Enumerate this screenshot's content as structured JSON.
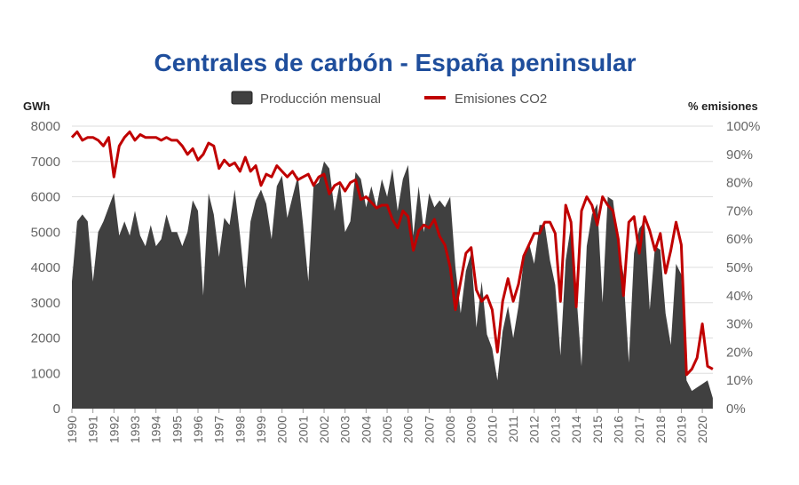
{
  "chart_data": {
    "type": "area+line",
    "title": "Centrales de carbón - España peninsular",
    "legend": [
      "Producción mensual",
      "Emisiones CO2"
    ],
    "legend_placement": "top",
    "ylabel_left": "GWh",
    "ylabel_right": "% emisiones",
    "ylim_left": [
      0,
      8000
    ],
    "ylim_right": [
      0,
      100
    ],
    "yticks_left": [
      "0",
      "1000",
      "2000",
      "3000",
      "4000",
      "5000",
      "6000",
      "7000",
      "8000"
    ],
    "yticks_right": [
      "0%",
      "10%",
      "20%",
      "30%",
      "40%",
      "50%",
      "60%",
      "70%",
      "80%",
      "90%",
      "100%"
    ],
    "xticks": [
      "1990",
      "1991",
      "1992",
      "1993",
      "1994",
      "1995",
      "1996",
      "1997",
      "1998",
      "1999",
      "2000",
      "2001",
      "2002",
      "2003",
      "2004",
      "2005",
      "2006",
      "2007",
      "2008",
      "2009",
      "2010",
      "2011",
      "2012",
      "2013",
      "2014",
      "2015",
      "2016",
      "2017",
      "2018",
      "2019",
      "2020"
    ],
    "grid": true,
    "colors": {
      "title": "#1f4e9c",
      "area": "#404040",
      "line": "#c00000",
      "grid": "#dddddd"
    },
    "x": [
      "1990-01",
      "1990-04",
      "1990-07",
      "1990-10",
      "1991-01",
      "1991-04",
      "1991-07",
      "1991-10",
      "1992-01",
      "1992-04",
      "1992-07",
      "1992-10",
      "1993-01",
      "1993-04",
      "1993-07",
      "1993-10",
      "1994-01",
      "1994-04",
      "1994-07",
      "1994-10",
      "1995-01",
      "1995-04",
      "1995-07",
      "1995-10",
      "1996-01",
      "1996-04",
      "1996-07",
      "1996-10",
      "1997-01",
      "1997-04",
      "1997-07",
      "1997-10",
      "1998-01",
      "1998-04",
      "1998-07",
      "1998-10",
      "1999-01",
      "1999-04",
      "1999-07",
      "1999-10",
      "2000-01",
      "2000-04",
      "2000-07",
      "2000-10",
      "2001-01",
      "2001-04",
      "2001-07",
      "2001-10",
      "2002-01",
      "2002-04",
      "2002-07",
      "2002-10",
      "2003-01",
      "2003-04",
      "2003-07",
      "2003-10",
      "2004-01",
      "2004-04",
      "2004-07",
      "2004-10",
      "2005-01",
      "2005-04",
      "2005-07",
      "2005-10",
      "2006-01",
      "2006-04",
      "2006-07",
      "2006-10",
      "2007-01",
      "2007-04",
      "2007-07",
      "2007-10",
      "2008-01",
      "2008-04",
      "2008-07",
      "2008-10",
      "2009-01",
      "2009-04",
      "2009-07",
      "2009-10",
      "2010-01",
      "2010-04",
      "2010-07",
      "2010-10",
      "2011-01",
      "2011-04",
      "2011-07",
      "2011-10",
      "2012-01",
      "2012-04",
      "2012-07",
      "2012-10",
      "2013-01",
      "2013-04",
      "2013-07",
      "2013-10",
      "2014-01",
      "2014-04",
      "2014-07",
      "2014-10",
      "2015-01",
      "2015-04",
      "2015-07",
      "2015-10",
      "2016-01",
      "2016-04",
      "2016-07",
      "2016-10",
      "2017-01",
      "2017-04",
      "2017-07",
      "2017-10",
      "2018-01",
      "2018-04",
      "2018-07",
      "2018-10",
      "2019-01",
      "2019-04",
      "2019-07",
      "2019-10",
      "2020-01",
      "2020-04",
      "2020-07"
    ],
    "series": [
      {
        "name": "Producción mensual",
        "type": "area",
        "axis": "left",
        "values": [
          3600,
          5300,
          5500,
          5300,
          3600,
          5000,
          5300,
          5700,
          6100,
          4900,
          5300,
          4900,
          5600,
          4900,
          4600,
          5200,
          4600,
          4800,
          5500,
          5000,
          5000,
          4600,
          5000,
          5900,
          5600,
          3200,
          6100,
          5500,
          4300,
          5400,
          5200,
          6200,
          4900,
          3400,
          5300,
          5900,
          6200,
          5800,
          4800,
          6300,
          6600,
          5400,
          6000,
          6600,
          5200,
          3600,
          6300,
          6400,
          7000,
          6800,
          5600,
          6400,
          5000,
          5300,
          6700,
          6500,
          5700,
          6300,
          5700,
          6500,
          6000,
          6800,
          5600,
          6500,
          6900,
          4900,
          6300,
          5000,
          6100,
          5700,
          5900,
          5700,
          6000,
          4000,
          2700,
          3900,
          4400,
          2300,
          3600,
          2100,
          1700,
          800,
          2200,
          2900,
          2000,
          2900,
          4200,
          4700,
          4100,
          5200,
          5200,
          4200,
          3500,
          1500,
          4200,
          5200,
          3300,
          1200,
          4600,
          5500,
          5800,
          3000,
          6000,
          5900,
          4700,
          3800,
          1300,
          4400,
          5100,
          5300,
          2800,
          4600,
          4500,
          2700,
          1800,
          4100,
          3800,
          800,
          500,
          600,
          700,
          800,
          300
        ]
      },
      {
        "name": "Emisiones CO2",
        "type": "line",
        "axis": "right",
        "values": [
          96,
          98,
          95,
          96,
          96,
          95,
          93,
          96,
          82,
          93,
          96,
          98,
          95,
          97,
          96,
          96,
          96,
          95,
          96,
          95,
          95,
          93,
          90,
          92,
          88,
          90,
          94,
          93,
          85,
          88,
          86,
          87,
          84,
          89,
          84,
          86,
          79,
          83,
          82,
          86,
          84,
          82,
          84,
          81,
          82,
          83,
          79,
          82,
          83,
          76,
          79,
          80,
          77,
          80,
          81,
          74,
          75,
          73,
          71,
          72,
          72,
          67,
          64,
          70,
          68,
          56,
          63,
          65,
          64,
          67,
          61,
          58,
          50,
          35,
          45,
          55,
          57,
          42,
          38,
          40,
          35,
          20,
          38,
          46,
          38,
          44,
          54,
          58,
          62,
          62,
          66,
          66,
          62,
          38,
          72,
          66,
          36,
          70,
          75,
          72,
          65,
          75,
          72,
          70,
          60,
          40,
          66,
          68,
          55,
          68,
          63,
          56,
          62,
          48,
          56,
          66,
          58,
          12,
          14,
          18,
          30,
          15,
          14
        ]
      }
    ]
  }
}
